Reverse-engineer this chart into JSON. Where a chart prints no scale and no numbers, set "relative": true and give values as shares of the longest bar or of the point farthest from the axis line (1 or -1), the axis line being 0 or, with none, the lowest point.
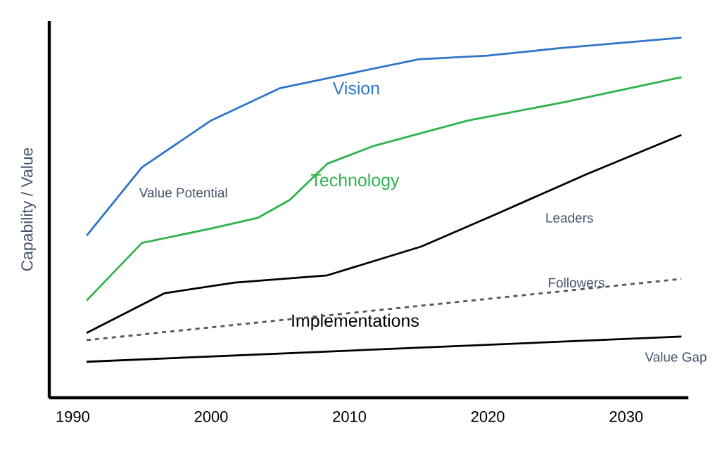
{
  "chart_data": {
    "type": "line",
    "relative": true,
    "ylabel": "Capability / Value",
    "xlim": [
      1988.3,
      2034.5
    ],
    "xticks": [
      1990,
      2000,
      2010,
      2020,
      2030
    ],
    "marker": "none",
    "series": [
      {
        "name": "Vision",
        "color": "#2e75c8",
        "x": [
          1991,
          1995,
          2000,
          2005,
          2010,
          2015,
          2020,
          2025,
          2034
        ],
        "values": [
          0.45,
          0.64,
          0.77,
          0.86,
          0.9,
          0.94,
          0.95,
          0.97,
          1
        ]
      },
      {
        "name": "Technology",
        "color": "#2fb24c",
        "x": [
          1991,
          1995,
          2000,
          2003.4,
          2005.7,
          2008.4,
          2011.8,
          2018.6,
          2025.4,
          2034
        ],
        "values": [
          0.27,
          0.43,
          0.47,
          0.5,
          0.55,
          0.65,
          0.7,
          0.77,
          0.82,
          0.89
        ]
      },
      {
        "name": "Implementations",
        "color": "#000000",
        "x": [
          1991,
          1996.6,
          2001.7,
          2008.4,
          2011.8,
          2015.2,
          2020.6,
          2027.1,
          2034
        ],
        "values": [
          0.18,
          0.29,
          0.32,
          0.34,
          0.38,
          0.42,
          0.51,
          0.62,
          0.73
        ]
      },
      {
        "color": "#555555",
        "line_style": "dashed",
        "x": [
          1991,
          2034
        ],
        "values": [
          0.16,
          0.33
        ]
      },
      {
        "color": "#000000",
        "x": [
          1991,
          2034
        ],
        "values": [
          0.1,
          0.17
        ]
      }
    ],
    "annotations": [
      "Value Potential",
      "Leaders",
      "Followers",
      "Value Gap"
    ]
  }
}
